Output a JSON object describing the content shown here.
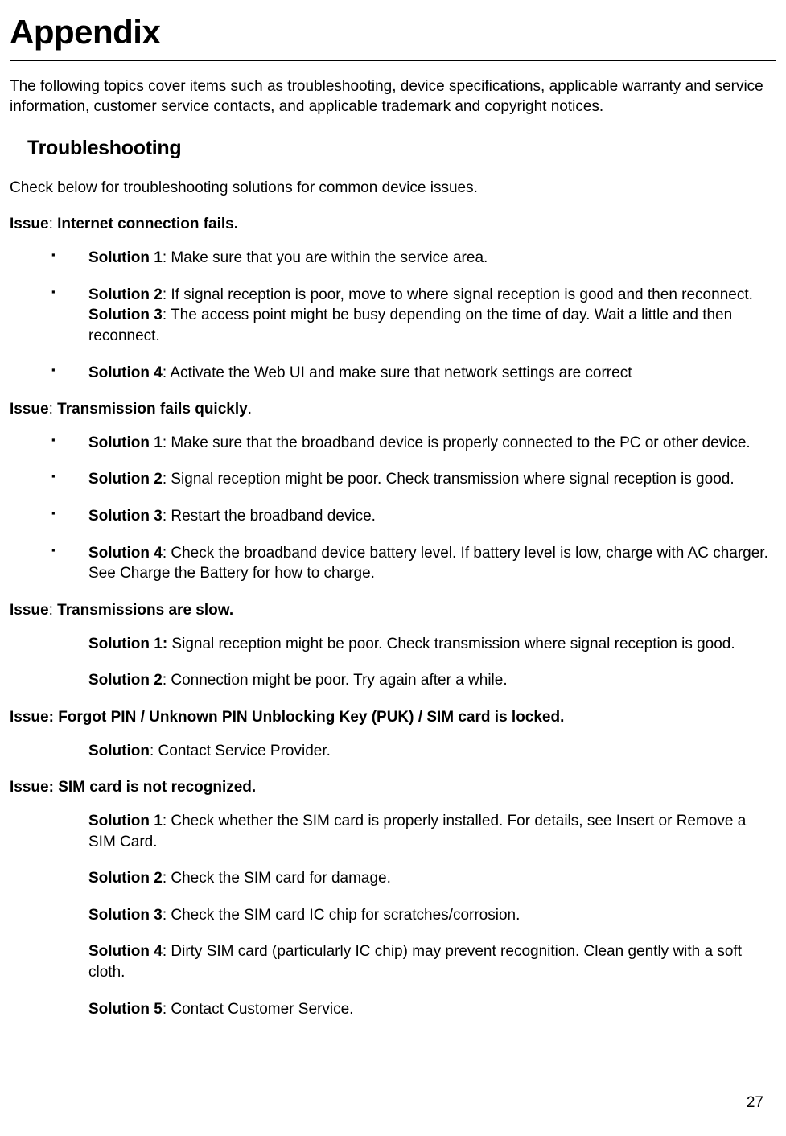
{
  "page": {
    "title": "Appendix",
    "intro": "The following topics cover items such as troubleshooting, device specifications, applicable warranty and service information, customer service contacts, and applicable trademark and copyright notices.",
    "section_title": "Troubleshooting",
    "check_text": "Check below for troubleshooting solutions for common device issues.",
    "page_number": "27",
    "issues": {
      "internet": {
        "label": "Issue",
        "title": "Internet connection fails.",
        "solutions": {
          "s1_label": "Solution 1",
          "s1_text": ": Make sure that you are within the service area.",
          "s2_label": "Solution 2",
          "s2_text": ": If signal reception is poor, move to where signal reception is good and then reconnect. ",
          "s3_label": "Solution 3",
          "s3_text": ": The access point might be busy depending on the time of day. Wait a little and then reconnect.",
          "s4_label": "Solution 4",
          "s4_text": ": Activate the Web UI and make sure that network settings are correct"
        }
      },
      "trans_fail": {
        "label": "Issue",
        "title": "Transmission fails quickly",
        "solutions": {
          "s1_label": "Solution 1",
          "s1_text": ": Make sure that the broadband device is properly connected to the PC or other device.",
          "s2_label": "Solution 2",
          "s2_text": ": Signal reception might be poor. Check transmission where signal reception is good.",
          "s3_label": "Solution 3",
          "s3_text": ": Restart the broadband device.",
          "s4_label": "Solution 4",
          "s4_text": ": Check the broadband device battery level. If battery level is low, charge with AC charger. See Charge the Battery for how to charge."
        }
      },
      "trans_slow": {
        "label": "Issue",
        "title": "Transmissions are slow.",
        "solutions": {
          "s1_label": "Solution 1:",
          "s1_text": " Signal reception might be poor. Check transmission where signal reception is good.",
          "s2_label": "Solution 2",
          "s2_text": ": Connection might be poor. Try again after a while."
        }
      },
      "pin": {
        "label": "Issue:",
        "title": "Forgot PIN / Unknown PIN Unblocking Key (PUK) / SIM card is locked.",
        "solutions": {
          "s1_label": "Solution",
          "s1_text": ": Contact Service Provider."
        }
      },
      "sim": {
        "label": "Issue:",
        "title": "SIM card is not recognized.",
        "solutions": {
          "s1_label": "Solution 1",
          "s1_text": ": Check whether the SIM card is properly installed. For details, see Insert or Remove a SIM Card.",
          "s2_label": "Solution 2",
          "s2_text": ": Check the SIM card for damage.",
          "s3_label": "Solution 3",
          "s3_text": ": Check the SIM card IC chip for scratches/corrosion.",
          "s4_label": "Solution 4",
          "s4_text": ": Dirty SIM card (particularly IC chip) may prevent recognition. Clean gently with a soft cloth.",
          "s5_label": "Solution 5",
          "s5_text": ": Contact Customer Service."
        }
      }
    }
  }
}
